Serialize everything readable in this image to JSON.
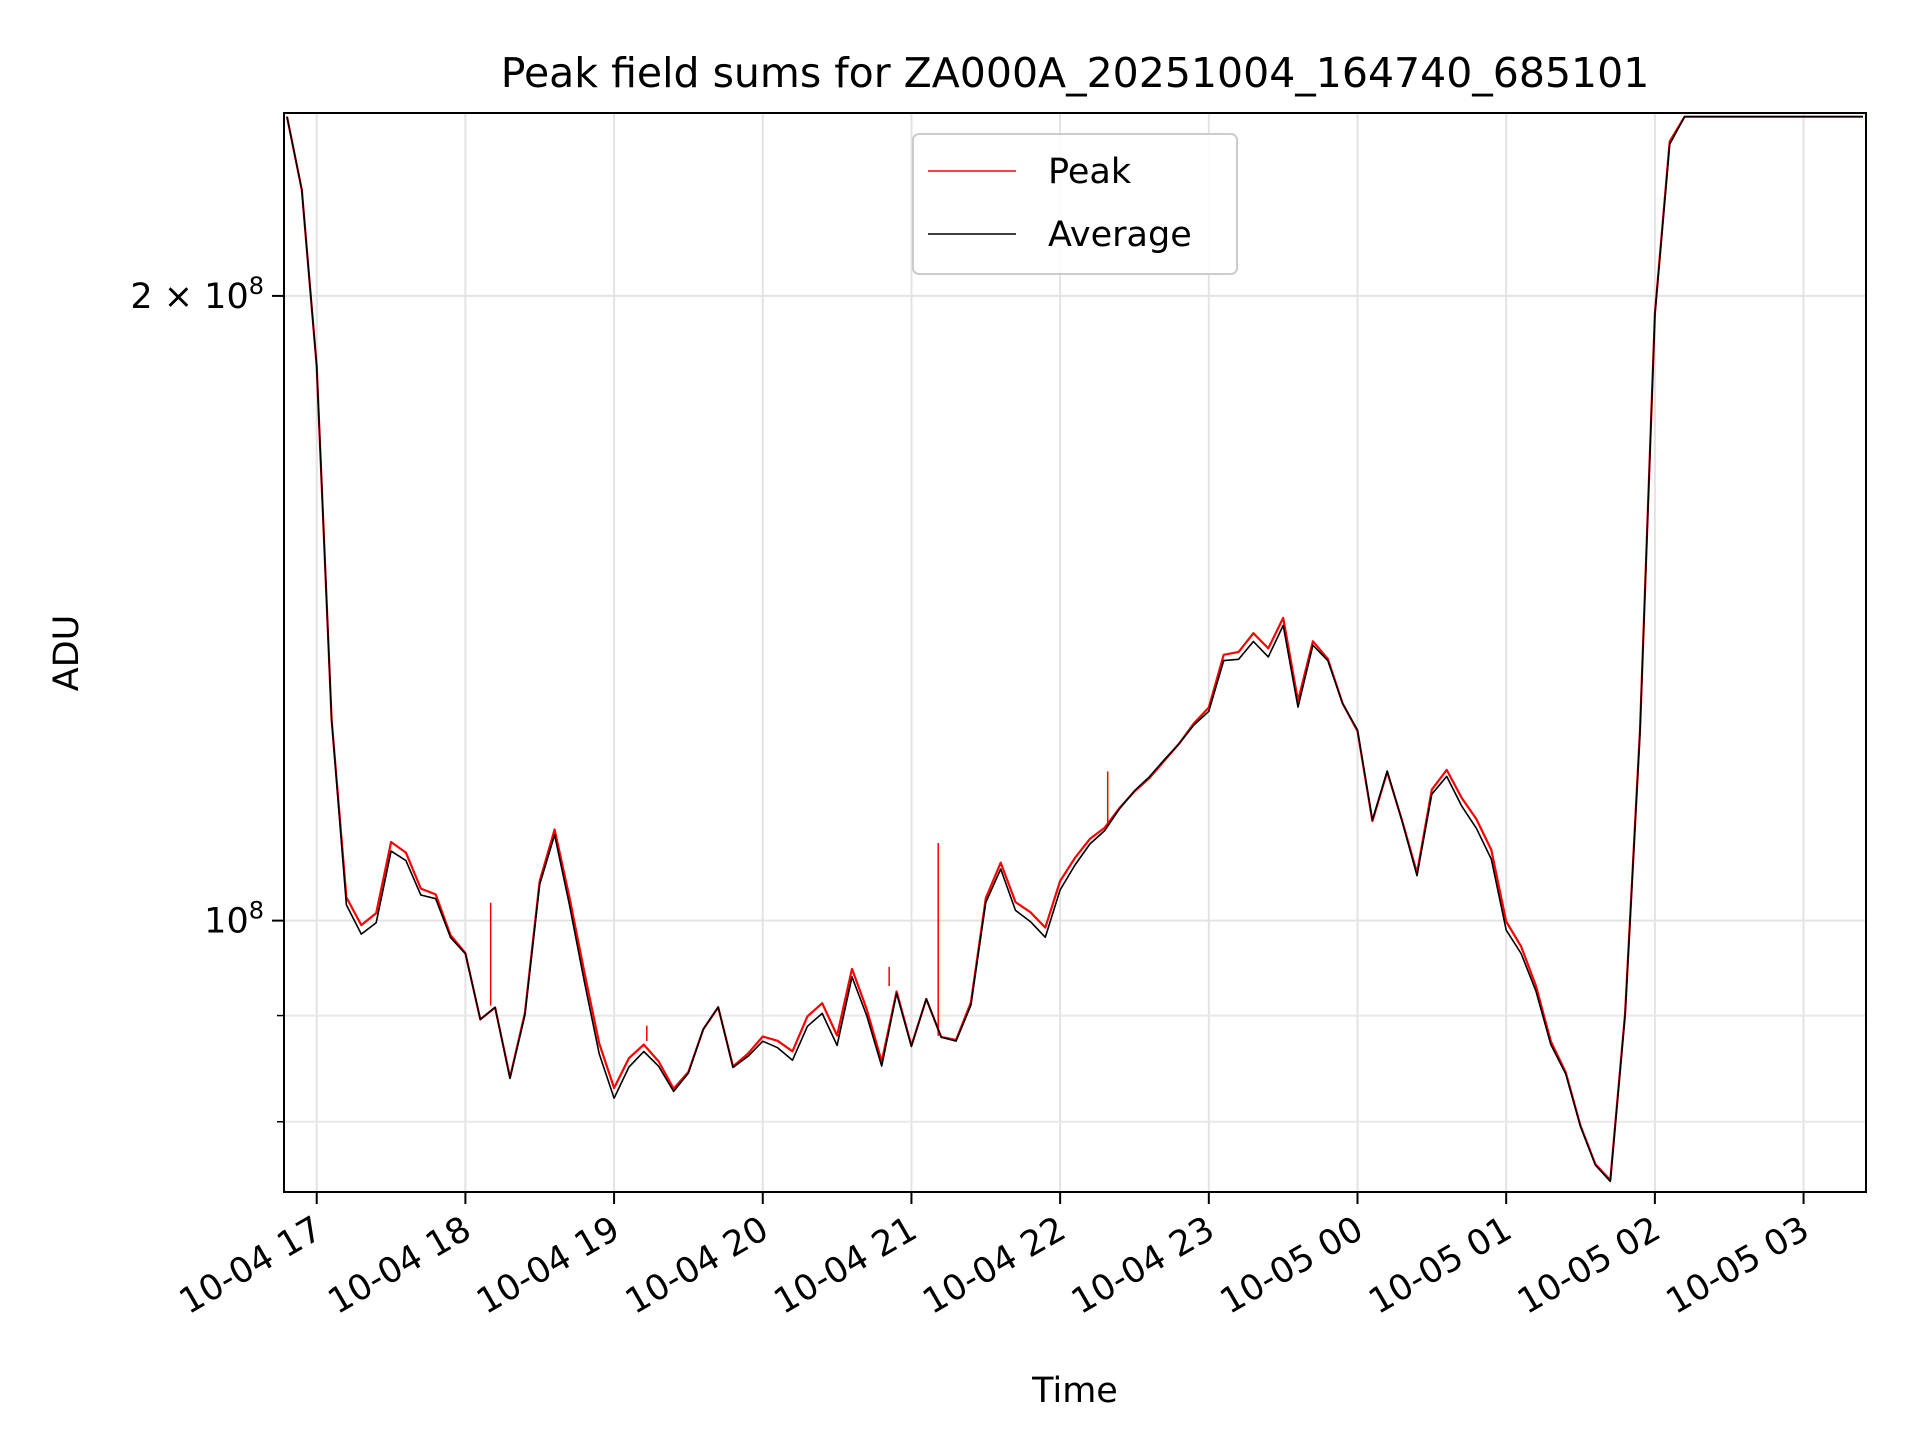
{
  "chart_data": {
    "type": "line",
    "title": "Peak field sums for ZA000A_20251004_164740_685101",
    "xlabel": "Time",
    "ylabel": "ADU",
    "y_scale": "log",
    "xlim": [
      16.78,
      27.42
    ],
    "ylim": [
      74000000,
      245000000
    ],
    "grid": true,
    "legend_position": "upper center",
    "x_ticks": [
      {
        "value": 17,
        "label": "10-04 17"
      },
      {
        "value": 18,
        "label": "10-04 18"
      },
      {
        "value": 19,
        "label": "10-04 19"
      },
      {
        "value": 20,
        "label": "10-04 20"
      },
      {
        "value": 21,
        "label": "10-04 21"
      },
      {
        "value": 22,
        "label": "10-04 22"
      },
      {
        "value": 23,
        "label": "10-04 23"
      },
      {
        "value": 24,
        "label": "10-05 00"
      },
      {
        "value": 25,
        "label": "10-05 01"
      },
      {
        "value": 26,
        "label": "10-05 02"
      },
      {
        "value": 27,
        "label": "10-05 03"
      }
    ],
    "y_major_ticks": [
      {
        "value": 100000000,
        "base": "10",
        "exponent": "8",
        "label": "10^8"
      },
      {
        "value": 200000000,
        "mantissa": "2 × ",
        "base": "10",
        "exponent": "8",
        "label": "2×10^8"
      }
    ],
    "y_minor_ticks": [
      80000000,
      90000000
    ],
    "series": [
      {
        "name": "Peak",
        "color": "#ff0000",
        "x": [
          16.8,
          16.9,
          17.0,
          17.1,
          17.2,
          17.3,
          17.4,
          17.5,
          17.6,
          17.7,
          17.8,
          17.9,
          18.0,
          18.1,
          18.2,
          18.3,
          18.4,
          18.5,
          18.6,
          18.7,
          18.8,
          18.9,
          19.0,
          19.1,
          19.2,
          19.3,
          19.4,
          19.5,
          19.6,
          19.7,
          19.8,
          19.9,
          20.0,
          20.1,
          20.2,
          20.3,
          20.4,
          20.5,
          20.6,
          20.7,
          20.8,
          20.9,
          21.0,
          21.1,
          21.2,
          21.3,
          21.4,
          21.5,
          21.6,
          21.7,
          21.8,
          21.9,
          22.0,
          22.1,
          22.2,
          22.3,
          22.4,
          22.5,
          22.6,
          22.7,
          22.8,
          22.9,
          23.0,
          23.1,
          23.2,
          23.3,
          23.4,
          23.5,
          23.6,
          23.7,
          23.8,
          23.9,
          24.0,
          24.1,
          24.2,
          24.3,
          24.4,
          24.5,
          24.6,
          24.7,
          24.8,
          24.9,
          25.0,
          25.1,
          25.2,
          25.3,
          25.4,
          25.5,
          25.6,
          25.7,
          25.8,
          25.9,
          26.0,
          26.1,
          26.2,
          26.3,
          26.4,
          26.5,
          26.6,
          26.7,
          26.8,
          26.9,
          27.0,
          27.1,
          27.2,
          27.3,
          27.4
        ],
        "y": [
          244000000,
          225000000,
          185000000,
          125000000,
          102000000,
          99000000,
          100500000,
          109000000,
          108000000,
          104000000,
          103500000,
          99000000,
          97000000,
          90000000,
          91000000,
          84000000,
          90000000,
          104000000,
          110000000,
          102000000,
          94000000,
          87000000,
          83000000,
          86000000,
          87500000,
          86000000,
          83500000,
          85000000,
          89000000,
          91000000,
          85000000,
          86000000,
          87500000,
          87000000,
          86000000,
          89500000,
          91000000,
          88000000,
          95000000,
          91000000,
          86000000,
          93000000,
          87500000,
          92000000,
          88000000,
          87500000,
          91000000,
          102000000,
          106000000,
          101500000,
          100500000,
          99000000,
          104500000,
          107500000,
          110000000,
          111500000,
          114000000,
          116000000,
          117500000,
          119500000,
          121500000,
          124000000,
          126000000,
          133500000,
          134000000,
          137000000,
          135000000,
          140000000,
          128000000,
          137000000,
          134500000,
          128000000,
          124000000,
          112000000,
          118000000,
          111500000,
          105000000,
          115000000,
          117500000,
          114000000,
          111500000,
          108000000,
          100000000,
          97500000,
          93500000,
          88000000,
          85000000,
          80000000,
          76500000,
          75000000,
          90000000,
          123000000,
          195000000,
          236000000,
          244000000,
          244000000,
          244000000,
          244000000,
          244000000,
          244000000,
          244000000,
          244000000,
          244000000,
          244000000,
          244000000,
          244000000,
          244000000
        ],
        "spikes": [
          {
            "x": 18.17,
            "y": 102000000
          },
          {
            "x": 19.22,
            "y": 89000000
          },
          {
            "x": 20.85,
            "y": 95000000
          },
          {
            "x": 21.18,
            "y": 109000000
          },
          {
            "x": 22.32,
            "y": 118000000
          }
        ]
      },
      {
        "name": "Average",
        "color": "#000000",
        "x": [
          16.8,
          16.9,
          17.0,
          17.1,
          17.2,
          17.3,
          17.4,
          17.5,
          17.6,
          17.7,
          17.8,
          17.9,
          18.0,
          18.1,
          18.2,
          18.3,
          18.4,
          18.5,
          18.6,
          18.7,
          18.8,
          18.9,
          19.0,
          19.1,
          19.2,
          19.3,
          19.4,
          19.5,
          19.6,
          19.7,
          19.8,
          19.9,
          20.0,
          20.1,
          20.2,
          20.3,
          20.4,
          20.5,
          20.6,
          20.7,
          20.8,
          20.9,
          21.0,
          21.1,
          21.2,
          21.3,
          21.4,
          21.5,
          21.6,
          21.7,
          21.8,
          21.9,
          22.0,
          22.1,
          22.2,
          22.3,
          22.4,
          22.5,
          22.6,
          22.7,
          22.8,
          22.9,
          23.0,
          23.1,
          23.2,
          23.3,
          23.4,
          23.5,
          23.6,
          23.7,
          23.8,
          23.9,
          24.0,
          24.1,
          24.2,
          24.3,
          24.4,
          24.5,
          24.6,
          24.7,
          24.8,
          24.9,
          25.0,
          25.1,
          25.2,
          25.3,
          25.4,
          25.5,
          25.6,
          25.7,
          25.8,
          25.9,
          26.0,
          26.1,
          26.2,
          26.3,
          26.4,
          26.5,
          26.6,
          26.7,
          26.8,
          26.9,
          27.0,
          27.1,
          27.2,
          27.3,
          27.4
        ],
        "y": [
          244000000,
          225000000,
          185000000,
          125000000,
          101500000,
          98500000,
          100000000,
          108500000,
          107500000,
          103500000,
          103000000,
          98500000,
          96500000,
          89500000,
          90500000,
          83500000,
          89500000,
          103500000,
          109500000,
          101500000,
          93500000,
          86500000,
          82500000,
          85500000,
          87000000,
          85500000,
          83000000,
          84500000,
          88500000,
          90500000,
          84500000,
          85500000,
          87000000,
          86500000,
          85500000,
          89000000,
          90500000,
          87500000,
          94500000,
          90500000,
          85500000,
          92500000,
          87000000,
          91500000,
          87500000,
          87000000,
          90500000,
          101500000,
          105500000,
          101000000,
          100000000,
          98500000,
          104000000,
          107000000,
          109500000,
          111000000,
          113500000,
          115500000,
          117000000,
          119000000,
          121000000,
          123500000,
          125500000,
          133000000,
          133500000,
          136500000,
          134500000,
          139500000,
          127500000,
          136500000,
          134000000,
          127500000,
          123500000,
          111500000,
          117500000,
          111000000,
          104500000,
          114500000,
          117000000,
          113500000,
          111000000,
          107500000,
          99500000,
          97000000,
          93000000,
          87500000,
          84500000,
          79500000,
          76000000,
          74500000,
          89500000,
          122500000,
          195000000,
          236000000,
          244000000,
          244000000,
          244000000,
          244000000,
          244000000,
          244000000,
          244000000,
          244000000,
          244000000,
          244000000,
          244000000,
          244000000,
          244000000
        ]
      }
    ]
  }
}
